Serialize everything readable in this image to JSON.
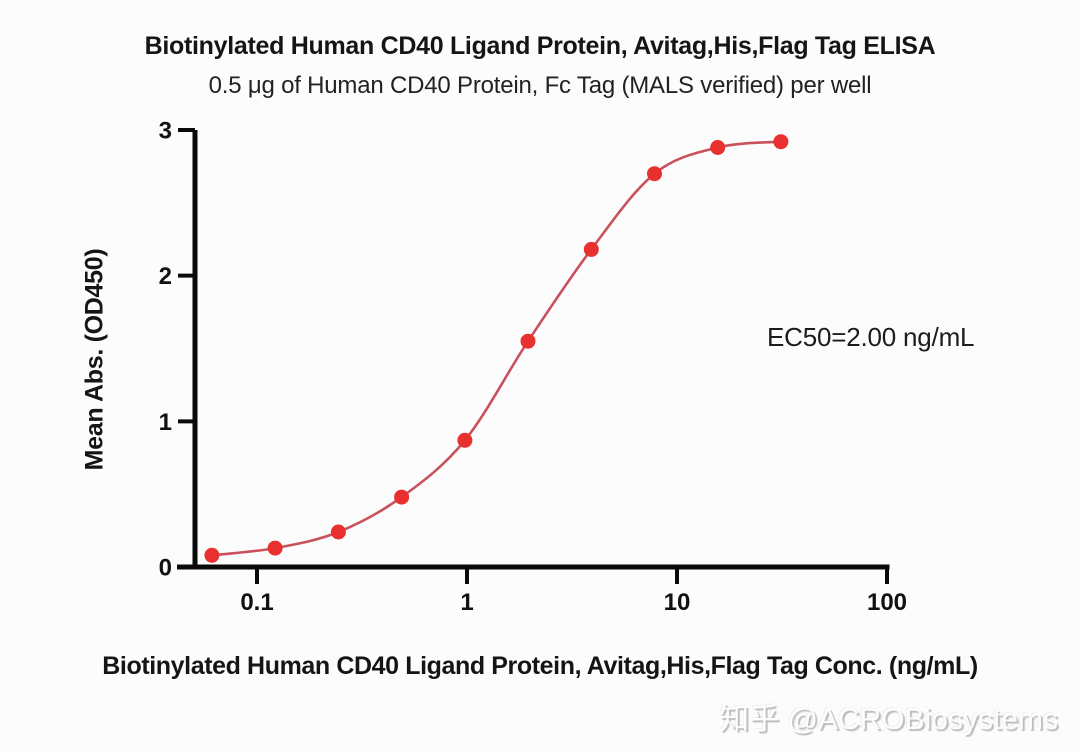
{
  "chart_data": {
    "type": "line",
    "title": "Biotinylated Human CD40 Ligand Protein, Avitag,His,Flag Tag ELISA",
    "subtitle": "0.5 μg of Human CD40 Protein, Fc Tag (MALS verified) per well",
    "xlabel": "Biotinylated Human CD40 Ligand Protein, Avitag,His,Flag Tag Conc. (ng/mL)",
    "ylabel": "Mean Abs. (OD450)",
    "annotation": "EC50=2.00 ng/mL",
    "x_scale": "log",
    "x": [
      0.061,
      0.122,
      0.244,
      0.488,
      0.977,
      1.953,
      3.906,
      7.813,
      15.625,
      31.25
    ],
    "y": [
      0.08,
      0.13,
      0.24,
      0.48,
      0.87,
      1.55,
      2.18,
      2.7,
      2.88,
      2.92
    ],
    "x_ticks": [
      {
        "value": 0.1,
        "label": "0.1"
      },
      {
        "value": 1,
        "label": "1"
      },
      {
        "value": 10,
        "label": "10"
      },
      {
        "value": 100,
        "label": "100"
      }
    ],
    "y_ticks": [
      {
        "value": 0,
        "label": "0"
      },
      {
        "value": 1,
        "label": "1"
      },
      {
        "value": 2,
        "label": "2"
      },
      {
        "value": 3,
        "label": "3"
      }
    ],
    "xlim": [
      0.05,
      100
    ],
    "ylim": [
      0,
      3
    ],
    "grid": false,
    "legend": "none",
    "marker_color": "#e8312f",
    "line_color": "#c9515c",
    "axis_color": "#0a0a0a"
  },
  "watermark": {
    "text": "知乎 @ACROBiosystems"
  }
}
